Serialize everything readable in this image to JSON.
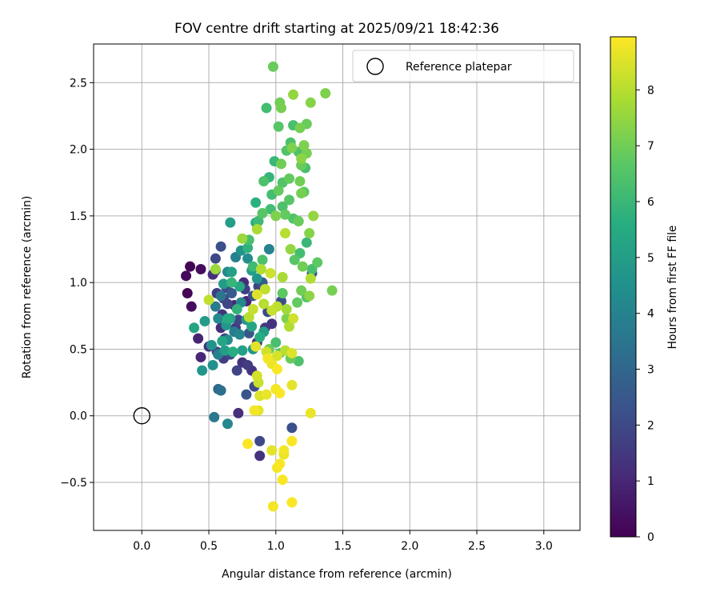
{
  "chart_data": {
    "type": "scatter",
    "title": "FOV centre drift starting at 2025/09/21 18:42:36",
    "xlabel": "Angular distance from reference (arcmin)",
    "ylabel": "Rotation from reference (arcmin)",
    "xlim": [
      -0.36,
      3.27
    ],
    "ylim": [
      -0.86,
      2.79
    ],
    "xticks": [
      0.0,
      0.5,
      1.0,
      1.5,
      2.0,
      2.5,
      3.0
    ],
    "xtick_labels": [
      "0.0",
      "0.5",
      "1.0",
      "1.5",
      "2.0",
      "2.5",
      "3.0"
    ],
    "yticks": [
      -0.5,
      0.0,
      0.5,
      1.0,
      1.5,
      2.0,
      2.5
    ],
    "ytick_labels": [
      "−0.5",
      "0.0",
      "0.5",
      "1.0",
      "1.5",
      "2.0",
      "2.5"
    ],
    "grid": true,
    "legend": {
      "position": "top-right",
      "entries": [
        "Reference platepar"
      ]
    },
    "reference_point": {
      "x": 0.0,
      "y": 0.0,
      "label": "Reference platepar"
    },
    "colorbar": {
      "label": "Hours from first FF file",
      "range": [
        0,
        8.95
      ],
      "ticks": [
        0,
        1,
        2,
        3,
        4,
        5,
        6,
        7,
        8
      ],
      "tick_labels": [
        "0",
        "1",
        "2",
        "3",
        "4",
        "5",
        "6",
        "7",
        "8"
      ],
      "colormap": "viridis"
    },
    "points": [
      [
        0.36,
        1.12,
        0.1
      ],
      [
        0.33,
        1.05,
        0.2
      ],
      [
        0.44,
        1.1,
        0.3
      ],
      [
        0.34,
        0.92,
        0.1
      ],
      [
        0.37,
        0.82,
        0.3
      ],
      [
        0.42,
        0.58,
        0.9
      ],
      [
        0.44,
        0.44,
        1.0
      ],
      [
        0.5,
        0.52,
        1.4
      ],
      [
        0.53,
        1.06,
        1.2
      ],
      [
        0.55,
        1.09,
        1.5
      ],
      [
        0.55,
        1.18,
        2.0
      ],
      [
        0.59,
        1.27,
        2.2
      ],
      [
        0.56,
        0.92,
        1.6
      ],
      [
        0.61,
        0.88,
        1.8
      ],
      [
        0.63,
        0.96,
        2.1
      ],
      [
        0.64,
        0.84,
        1.9
      ],
      [
        0.6,
        0.76,
        1.4
      ],
      [
        0.59,
        0.66,
        1.2
      ],
      [
        0.62,
        0.58,
        1.7
      ],
      [
        0.56,
        0.48,
        1.9
      ],
      [
        0.61,
        0.43,
        1.6
      ],
      [
        0.66,
        0.46,
        2.1
      ],
      [
        0.71,
        0.34,
        1.8
      ],
      [
        0.75,
        0.4,
        1.3
      ],
      [
        0.79,
        0.38,
        1.6
      ],
      [
        0.82,
        0.34,
        1.4
      ],
      [
        0.84,
        0.22,
        2.0
      ],
      [
        0.78,
        0.16,
        2.4
      ],
      [
        0.72,
        0.02,
        1.2
      ],
      [
        0.88,
        -0.19,
        2.0
      ],
      [
        0.88,
        -0.3,
        1.3
      ],
      [
        1.12,
        -0.09,
        2.2
      ],
      [
        0.72,
        0.72,
        1.9
      ],
      [
        0.78,
        0.86,
        1.0
      ],
      [
        0.77,
        0.95,
        1.7
      ],
      [
        0.83,
        0.9,
        2.3
      ],
      [
        0.87,
        0.97,
        1.8
      ],
      [
        0.9,
        1.0,
        2.6
      ],
      [
        0.94,
        0.78,
        2.0
      ],
      [
        0.97,
        0.69,
        1.3
      ],
      [
        0.92,
        0.66,
        1.5
      ],
      [
        0.86,
        0.55,
        1.4
      ],
      [
        0.8,
        0.62,
        2.4
      ],
      [
        0.7,
        0.66,
        1.6
      ],
      [
        0.76,
        1.0,
        1.1
      ],
      [
        0.67,
        0.92,
        2.6
      ],
      [
        0.69,
        0.83,
        1.0
      ],
      [
        1.27,
        1.07,
        2.4
      ],
      [
        1.04,
        0.86,
        2.2
      ],
      [
        0.45,
        0.34,
        4.7
      ],
      [
        0.53,
        0.38,
        4.5
      ],
      [
        0.57,
        0.2,
        3.1
      ],
      [
        0.59,
        0.19,
        3.3
      ],
      [
        0.54,
        -0.01,
        3.6
      ],
      [
        0.64,
        -0.06,
        4.2
      ],
      [
        0.47,
        0.71,
        4.9
      ],
      [
        0.39,
        0.66,
        5.2
      ],
      [
        0.52,
        0.53,
        4.6
      ],
      [
        0.57,
        0.46,
        3.9
      ],
      [
        0.62,
        0.49,
        5.0
      ],
      [
        0.64,
        0.57,
        4.4
      ],
      [
        0.63,
        0.68,
        4.8
      ],
      [
        0.66,
        0.73,
        5.3
      ],
      [
        0.69,
        0.63,
        3.8
      ],
      [
        0.73,
        0.61,
        4.1
      ],
      [
        0.57,
        0.73,
        4.3
      ],
      [
        0.55,
        0.82,
        3.7
      ],
      [
        0.59,
        0.9,
        3.5
      ],
      [
        0.61,
        0.99,
        4.9
      ],
      [
        0.64,
        1.08,
        4.2
      ],
      [
        0.67,
        1.08,
        5.1
      ],
      [
        0.7,
        1.19,
        3.9
      ],
      [
        0.74,
        1.24,
        4.6
      ],
      [
        0.79,
        1.18,
        4.4
      ],
      [
        0.82,
        1.09,
        5.0
      ],
      [
        0.73,
        0.97,
        5.4
      ],
      [
        0.78,
        0.72,
        4.8
      ],
      [
        0.82,
        0.67,
        5.3
      ],
      [
        0.75,
        0.49,
        5.1
      ],
      [
        0.83,
        0.5,
        4.7
      ],
      [
        0.88,
        0.59,
        5.6
      ],
      [
        0.91,
        0.63,
        5.0
      ],
      [
        0.74,
        0.85,
        4.1
      ],
      [
        0.66,
        1.45,
        5.0
      ],
      [
        0.85,
        1.45,
        5.6
      ],
      [
        0.95,
        1.25,
        4.0
      ],
      [
        0.6,
        0.56,
        5.3
      ],
      [
        0.68,
        0.48,
        5.6
      ],
      [
        0.86,
        1.03,
        4.7
      ],
      [
        0.8,
        1.32,
        6.3
      ],
      [
        0.87,
        1.46,
        6.1
      ],
      [
        0.9,
        1.52,
        6.6
      ],
      [
        0.96,
        1.55,
        6.2
      ],
      [
        0.91,
        1.76,
        6.4
      ],
      [
        0.95,
        1.79,
        5.9
      ],
      [
        1.02,
        1.69,
        6.8
      ],
      [
        1.05,
        1.75,
        6.5
      ],
      [
        1.1,
        1.78,
        6.8
      ],
      [
        1.04,
        1.89,
        7.0
      ],
      [
        1.08,
        1.99,
        6.5
      ],
      [
        1.12,
        2.01,
        7.2
      ],
      [
        1.17,
        1.98,
        6.4
      ],
      [
        1.21,
        2.03,
        7.2
      ],
      [
        1.23,
        1.97,
        7.1
      ],
      [
        1.19,
        1.88,
        6.9
      ],
      [
        1.22,
        1.86,
        6.3
      ],
      [
        1.18,
        1.76,
        7.0
      ],
      [
        1.21,
        1.68,
        6.7
      ],
      [
        1.19,
        1.67,
        7.1
      ],
      [
        1.1,
        1.62,
        6.6
      ],
      [
        1.05,
        1.57,
        6.4
      ],
      [
        1.0,
        1.5,
        7.2
      ],
      [
        1.07,
        1.51,
        6.8
      ],
      [
        1.13,
        1.48,
        6.5
      ],
      [
        1.17,
        1.46,
        6.9
      ],
      [
        1.23,
        1.3,
        6.0
      ],
      [
        1.18,
        1.22,
        6.2
      ],
      [
        1.14,
        1.17,
        6.6
      ],
      [
        1.2,
        1.12,
        7.0
      ],
      [
        1.27,
        1.1,
        6.3
      ],
      [
        1.31,
        1.15,
        6.7
      ],
      [
        1.25,
        1.37,
        7.3
      ],
      [
        1.28,
        1.5,
        7.5
      ],
      [
        1.13,
        2.18,
        6.3
      ],
      [
        1.18,
        2.16,
        7.1
      ],
      [
        1.23,
        2.19,
        6.9
      ],
      [
        1.26,
        2.35,
        7.3
      ],
      [
        1.37,
        2.42,
        7.2
      ],
      [
        1.13,
        2.41,
        7.5
      ],
      [
        1.03,
        2.35,
        7.0
      ],
      [
        0.93,
        2.31,
        6.2
      ],
      [
        0.98,
        2.62,
        6.9
      ],
      [
        1.04,
        2.31,
        7.1
      ],
      [
        1.02,
        2.17,
        6.6
      ],
      [
        1.11,
        2.05,
        6.4
      ],
      [
        1.19,
        1.93,
        7.4
      ],
      [
        0.99,
        1.91,
        6.0
      ],
      [
        0.97,
        1.66,
        6.2
      ],
      [
        0.85,
        1.6,
        5.7
      ],
      [
        0.79,
        1.26,
        5.8
      ],
      [
        0.83,
        1.12,
        6.1
      ],
      [
        0.9,
        1.17,
        6.4
      ],
      [
        1.16,
        0.85,
        6.8
      ],
      [
        1.19,
        0.94,
        7.0
      ],
      [
        1.23,
        0.89,
        6.5
      ],
      [
        1.25,
        0.9,
        7.4
      ],
      [
        1.17,
        0.41,
        6.4
      ],
      [
        1.42,
        0.94,
        7.1
      ],
      [
        1.05,
        0.92,
        6.7
      ],
      [
        1.08,
        0.73,
        7.2
      ],
      [
        1.03,
        0.47,
        6.6
      ],
      [
        1.11,
        0.43,
        6.9
      ],
      [
        1.0,
        0.55,
        6.3
      ],
      [
        0.95,
        0.5,
        6.9
      ],
      [
        0.75,
        1.33,
        7.6
      ],
      [
        0.86,
        1.4,
        7.8
      ],
      [
        0.89,
        1.1,
        7.9
      ],
      [
        0.91,
        0.84,
        8.0
      ],
      [
        0.97,
        0.79,
        8.2
      ],
      [
        1.01,
        0.82,
        8.1
      ],
      [
        1.08,
        0.8,
        7.7
      ],
      [
        1.1,
        0.67,
        7.9
      ],
      [
        1.13,
        0.73,
        8.3
      ],
      [
        1.07,
        1.37,
        8.0
      ],
      [
        1.05,
        1.04,
        7.8
      ],
      [
        1.11,
        1.25,
        7.5
      ],
      [
        1.26,
        1.03,
        7.9
      ],
      [
        0.96,
        1.07,
        8.3
      ],
      [
        0.92,
        0.95,
        8.1
      ],
      [
        0.86,
        0.91,
        8.5
      ],
      [
        0.83,
        0.8,
        8.2
      ],
      [
        0.8,
        0.74,
        8.0
      ],
      [
        0.85,
        0.52,
        8.6
      ],
      [
        0.93,
        0.48,
        8.3
      ],
      [
        0.97,
        0.39,
        8.7
      ],
      [
        1.01,
        0.45,
        8.4
      ],
      [
        1.07,
        0.49,
        8.0
      ],
      [
        1.12,
        0.47,
        8.5
      ],
      [
        0.94,
        0.43,
        8.8
      ],
      [
        1.01,
        0.35,
        8.9
      ],
      [
        0.86,
        0.3,
        8.4
      ],
      [
        0.87,
        0.25,
        8.2
      ],
      [
        0.88,
        0.15,
        8.5
      ],
      [
        0.93,
        0.16,
        8.7
      ],
      [
        1.0,
        0.2,
        8.8
      ],
      [
        1.03,
        0.17,
        8.9
      ],
      [
        1.12,
        0.23,
        8.6
      ],
      [
        0.84,
        0.04,
        8.8
      ],
      [
        0.87,
        0.04,
        8.6
      ],
      [
        0.79,
        -0.21,
        8.9
      ],
      [
        0.97,
        -0.26,
        8.6
      ],
      [
        1.01,
        -0.39,
        8.8
      ],
      [
        1.03,
        -0.36,
        8.9
      ],
      [
        1.06,
        -0.29,
        8.7
      ],
      [
        1.06,
        -0.26,
        8.8
      ],
      [
        1.12,
        -0.19,
        8.9
      ],
      [
        1.05,
        -0.48,
        8.9
      ],
      [
        0.98,
        -0.68,
        8.8
      ],
      [
        1.12,
        -0.65,
        8.9
      ],
      [
        1.26,
        0.02,
        8.7
      ],
      [
        0.5,
        0.87,
        8.1
      ],
      [
        0.55,
        1.1,
        7.6
      ],
      [
        0.67,
        1.0,
        5.9
      ],
      [
        0.64,
        0.73,
        5.5
      ],
      [
        0.71,
        0.8,
        5.8
      ]
    ]
  }
}
